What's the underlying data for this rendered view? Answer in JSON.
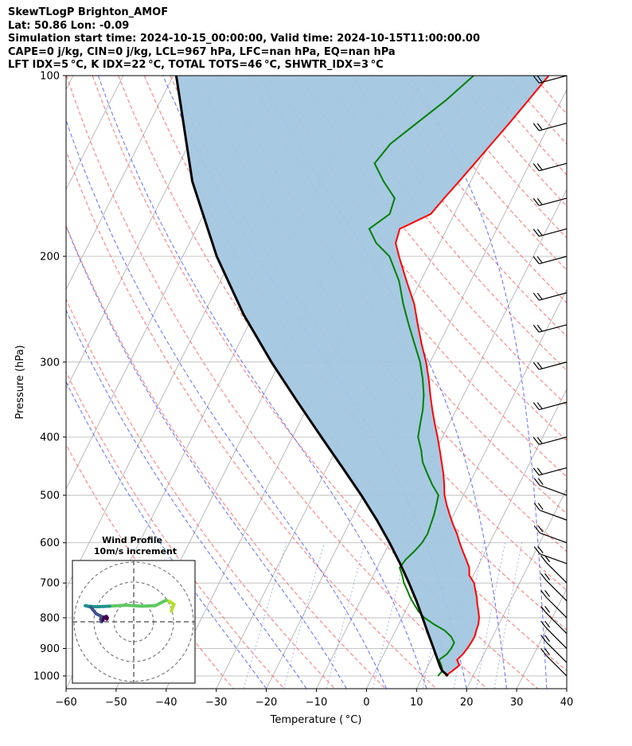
{
  "header": {
    "line1": "SkewTLogP Brighton_AMOF",
    "line2": "Lat: 50.86   Lon: -0.09",
    "line3": "Simulation start time: 2024-10-15_00:00:00, Valid time: 2024-10-15T11:00:00.00",
    "line4": "CAPE=0 j/kg, CIN=0 j/kg, LCL=967 hPa, LFC=nan hPa, EQ=nan hPa",
    "line5": "LFT IDX=5 °C, K IDX=22 °C, TOTAL TOTS=46 °C, SHWTR_IDX=3 °C"
  },
  "colors": {
    "temperature": "#ff0000",
    "dewpoint": "#008000",
    "parcel": "#000000",
    "fill": "#a3c6e0",
    "dry_adiabats": "#ff6666",
    "moist_adiabats": "#4455ff",
    "mixing_ratio": "#5566ee",
    "isotherms": "#aaaaaa"
  },
  "chart_data": {
    "type": "skew-t",
    "xlabel": "Temperature ( °C)",
    "ylabel": "Pressure (hPa)",
    "xlim": [
      -60,
      40
    ],
    "ylim": [
      1050,
      100
    ],
    "xticks": [
      "−60",
      "−50",
      "−40",
      "−30",
      "−20",
      "−10",
      "0",
      "10",
      "20",
      "30",
      "40"
    ],
    "yticks": [
      "100",
      "200",
      "300",
      "400",
      "500",
      "600",
      "700",
      "800",
      "900",
      "1000"
    ],
    "grid": true,
    "series": [
      {
        "key": "temperature",
        "pressure": [
          1000,
          980,
          960,
          940,
          920,
          900,
          880,
          860,
          840,
          820,
          800,
          780,
          760,
          740,
          720,
          700,
          680,
          660,
          640,
          620,
          600,
          580,
          560,
          540,
          520,
          500,
          480,
          460,
          440,
          420,
          400,
          380,
          360,
          340,
          320,
          300,
          280,
          260,
          240,
          220,
          200,
          190,
          180,
          170,
          160,
          150,
          140,
          130,
          120,
          110,
          100
        ],
        "values": [
          14.5,
          15.4,
          16.2,
          15.2,
          15.8,
          16.1,
          16.3,
          16.4,
          16.1,
          15.9,
          15.4,
          14.6,
          13.7,
          12.9,
          11.9,
          10.9,
          9.2,
          8.4,
          7.0,
          5.5,
          4.0,
          2.6,
          0.9,
          -0.7,
          -2.3,
          -3.8,
          -4.9,
          -6.2,
          -7.7,
          -9.3,
          -11.0,
          -12.9,
          -14.8,
          -16.7,
          -18.6,
          -20.8,
          -23.5,
          -26.2,
          -29.0,
          -32.8,
          -36.8,
          -38.8,
          -39.4,
          -34.7,
          -33.6,
          -32.3,
          -31.0,
          -29.6,
          -28.1,
          -26.6,
          -25.0
        ]
      },
      {
        "key": "dewpoint",
        "pressure": [
          1000,
          980,
          960,
          940,
          920,
          900,
          880,
          860,
          840,
          820,
          800,
          780,
          760,
          740,
          720,
          700,
          680,
          660,
          640,
          620,
          600,
          580,
          560,
          540,
          520,
          500,
          480,
          460,
          440,
          420,
          400,
          380,
          360,
          340,
          320,
          300,
          280,
          260,
          240,
          220,
          200,
          190,
          180,
          170,
          160,
          150,
          140,
          130,
          120,
          110,
          100
        ],
        "values": [
          13.0,
          13.4,
          12.6,
          11.6,
          12.6,
          12.9,
          12.9,
          11.7,
          9.8,
          7.0,
          4.5,
          2.6,
          1.1,
          -0.4,
          -1.7,
          -3.1,
          -4.2,
          -5.5,
          -5.1,
          -4.2,
          -3.5,
          -3.3,
          -3.6,
          -3.9,
          -4.4,
          -5.0,
          -7.3,
          -9.4,
          -11.5,
          -13.0,
          -14.9,
          -15.8,
          -16.7,
          -18.0,
          -19.8,
          -22.0,
          -24.9,
          -28.0,
          -31.2,
          -34.3,
          -38.7,
          -42.7,
          -45.5,
          -42.9,
          -43.5,
          -47.4,
          -51.0,
          -49.8,
          -46.6,
          -43.1,
          -40.0
        ]
      },
      {
        "key": "parcel",
        "pressure": [
          1000,
          980,
          967,
          950,
          900,
          850,
          800,
          750,
          700,
          650,
          600,
          550,
          500,
          450,
          400,
          350,
          300,
          250,
          200,
          150,
          100
        ],
        "values": [
          15.0,
          13.3,
          12.6,
          11.8,
          9.4,
          6.8,
          4.1,
          1.2,
          -2.1,
          -5.8,
          -10.0,
          -14.8,
          -20.4,
          -26.9,
          -34.2,
          -42.4,
          -51.7,
          -62.0,
          -73.2,
          -85.6,
          -99.4
        ]
      }
    ],
    "inset": {
      "title": "Wind Profile",
      "subtitle": "10m/s increment",
      "type": "hodograph",
      "u": [
        14.0,
        14.5,
        15.0,
        13.5,
        12.0,
        10.0,
        8.0,
        3.0,
        -3.0,
        -9.0,
        -14.0,
        -17.0,
        -18.0,
        -16.0,
        -14.0,
        -12.0,
        -12.3,
        -12.0,
        -11.5,
        -11.0,
        -10.5,
        -10.2,
        -10.0,
        -9.8
      ],
      "v": [
        4.0,
        5.5,
        6.5,
        7.5,
        8.0,
        7.0,
        6.0,
        5.8,
        6.2,
        5.8,
        5.6,
        5.8,
        6.0,
        5.5,
        3.0,
        2.0,
        1.0,
        0.0,
        0.5,
        1.8,
        1.5,
        2.0,
        1.0,
        1.5
      ]
    }
  }
}
